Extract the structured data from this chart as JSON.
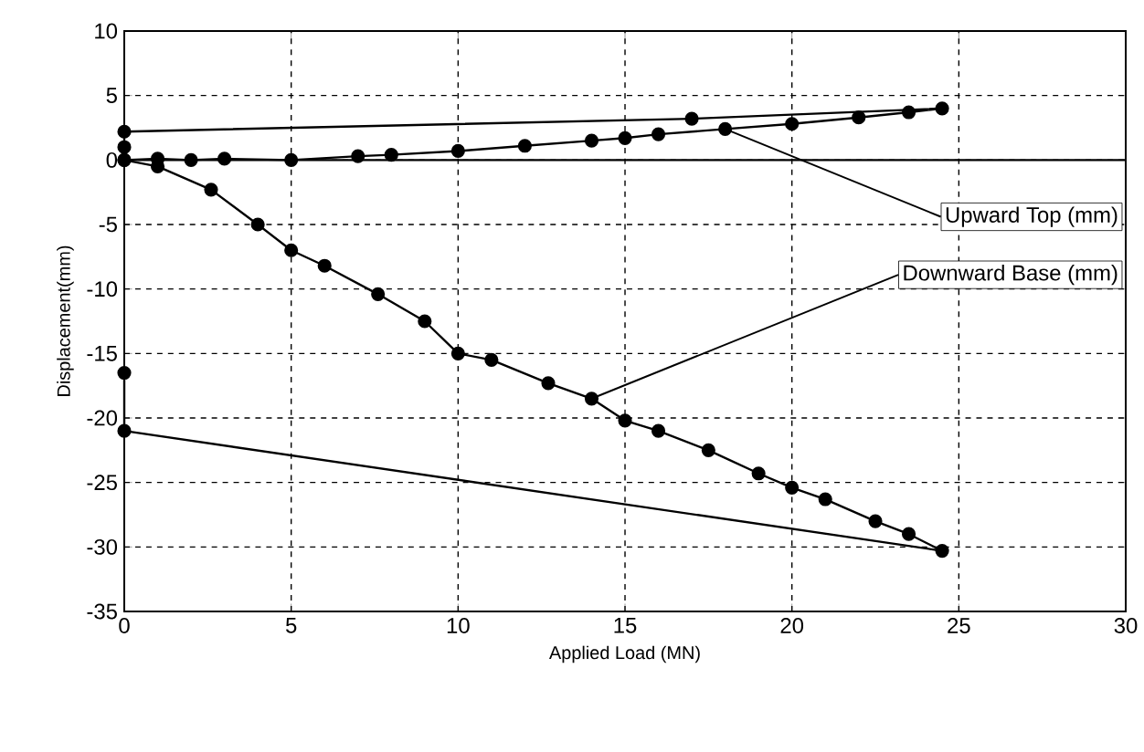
{
  "chart_data": {
    "type": "line",
    "xlabel": "Applied Load (MN)",
    "ylabel": "Displacement(mm)",
    "xlim": [
      0,
      30
    ],
    "xticks": [
      0,
      5,
      10,
      15,
      20,
      25,
      30
    ],
    "ylim": [
      -35,
      10
    ],
    "yticks": [
      -35,
      -30,
      -25,
      -20,
      -15,
      -10,
      -5,
      0,
      5,
      10
    ],
    "grid": true,
    "legend": "right",
    "marker": "circle",
    "line_style": "solid",
    "ref_lines": [
      {
        "axis": "y",
        "value": 0,
        "color": "#000000"
      }
    ],
    "series": [
      {
        "name": "Upward Top (mm)",
        "color": "#000000",
        "x": [
          0,
          1,
          2,
          3,
          5,
          7,
          8,
          10,
          12,
          14,
          15,
          16,
          18,
          20,
          22,
          23.5,
          24.5,
          17,
          0,
          0
        ],
        "values": [
          0,
          0.1,
          0,
          0.1,
          0,
          0.3,
          0.4,
          0.7,
          1.1,
          1.5,
          1.7,
          2.0,
          2.4,
          2.8,
          3.3,
          3.7,
          4.0,
          3.2,
          2.2,
          1.0
        ]
      },
      {
        "name": "Downward Base (mm)",
        "color": "#000000",
        "x": [
          0,
          1,
          2.6,
          4,
          5,
          6,
          7.6,
          9,
          10,
          11,
          12.7,
          14,
          15,
          16,
          17.5,
          19,
          20,
          21,
          22.5,
          23.5,
          24.5,
          0,
          0
        ],
        "values": [
          0,
          -0.5,
          -2.3,
          -5,
          -7,
          -8.2,
          -10.4,
          -12.5,
          -15,
          -15.5,
          -17.3,
          -18.5,
          -20.2,
          -21,
          -22.5,
          -24.3,
          -25.4,
          -26.3,
          -28,
          -29,
          -30.3,
          -21,
          -16.5
        ]
      }
    ]
  }
}
